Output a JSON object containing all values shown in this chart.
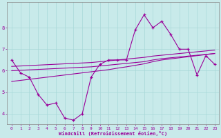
{
  "x": [
    0,
    1,
    2,
    3,
    4,
    5,
    6,
    7,
    8,
    9,
    10,
    11,
    12,
    13,
    14,
    15,
    16,
    17,
    18,
    19,
    20,
    21,
    22,
    23
  ],
  "y_main": [
    6.5,
    5.9,
    5.7,
    4.9,
    4.4,
    4.5,
    3.8,
    3.7,
    4.0,
    5.7,
    6.3,
    6.5,
    6.5,
    6.5,
    7.9,
    8.6,
    8.0,
    8.3,
    7.7,
    7.0,
    7.0,
    5.8,
    6.7,
    6.3
  ],
  "y_trend1": [
    6.0,
    6.02,
    6.04,
    6.06,
    6.08,
    6.1,
    6.12,
    6.14,
    6.16,
    6.18,
    6.22,
    6.26,
    6.3,
    6.34,
    6.38,
    6.42,
    6.5,
    6.56,
    6.6,
    6.64,
    6.68,
    6.72,
    6.76,
    6.8
  ],
  "y_trend2": [
    5.5,
    5.55,
    5.6,
    5.65,
    5.7,
    5.75,
    5.8,
    5.85,
    5.9,
    5.95,
    6.0,
    6.05,
    6.12,
    6.18,
    6.25,
    6.32,
    6.42,
    6.5,
    6.55,
    6.6,
    6.65,
    6.7,
    6.75,
    6.8
  ],
  "y_trend3": [
    6.2,
    6.22,
    6.24,
    6.26,
    6.28,
    6.3,
    6.32,
    6.34,
    6.36,
    6.38,
    6.42,
    6.46,
    6.5,
    6.54,
    6.58,
    6.62,
    6.68,
    6.72,
    6.76,
    6.8,
    6.84,
    6.88,
    6.92,
    6.96
  ],
  "line_color": "#990099",
  "bg_color": "#c8eaea",
  "grid_color": "#a8d8d8",
  "xlabel": "Windchill (Refroidissement éolien,°C)",
  "ylim": [
    3.5,
    9.2
  ],
  "xlim": [
    -0.5,
    23.5
  ],
  "yticks": [
    4,
    5,
    6,
    7,
    8
  ],
  "xticks": [
    0,
    1,
    2,
    3,
    4,
    5,
    6,
    7,
    8,
    9,
    10,
    11,
    12,
    13,
    14,
    15,
    16,
    17,
    18,
    19,
    20,
    21,
    22,
    23
  ]
}
